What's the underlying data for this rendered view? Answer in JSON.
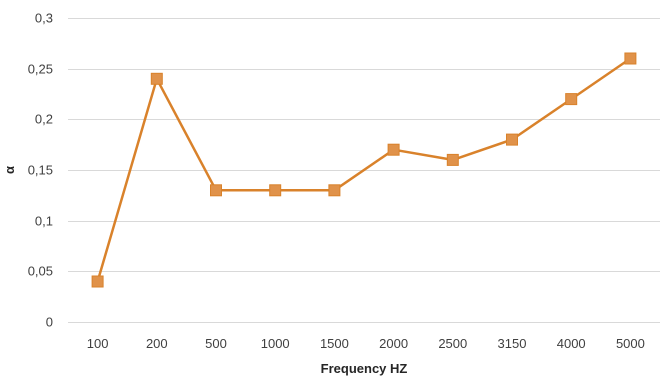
{
  "chart_data": {
    "type": "line",
    "categories": [
      "100",
      "200",
      "500",
      "1000",
      "1500",
      "2000",
      "2500",
      "3150",
      "4000",
      "5000"
    ],
    "series": [
      {
        "values": [
          0.04,
          0.24,
          0.13,
          0.13,
          0.13,
          0.17,
          0.16,
          0.18,
          0.22,
          0.26
        ]
      }
    ],
    "xlabel": "Frequency HZ",
    "ylabel": "α",
    "ylim": [
      0,
      0.3
    ],
    "yticks": [
      0,
      0.05,
      0.1,
      0.15,
      0.2,
      0.25,
      0.3
    ],
    "ytick_labels": [
      "0",
      "0,05",
      "0,1",
      "0,15",
      "0,2",
      "0,25",
      "0,3"
    ],
    "grid": "horizontal",
    "legend": "none",
    "marker": "square",
    "colors": {
      "series": "#D9822B",
      "marker_fill": "#E0924A",
      "grid": "#D9D9D9"
    }
  }
}
